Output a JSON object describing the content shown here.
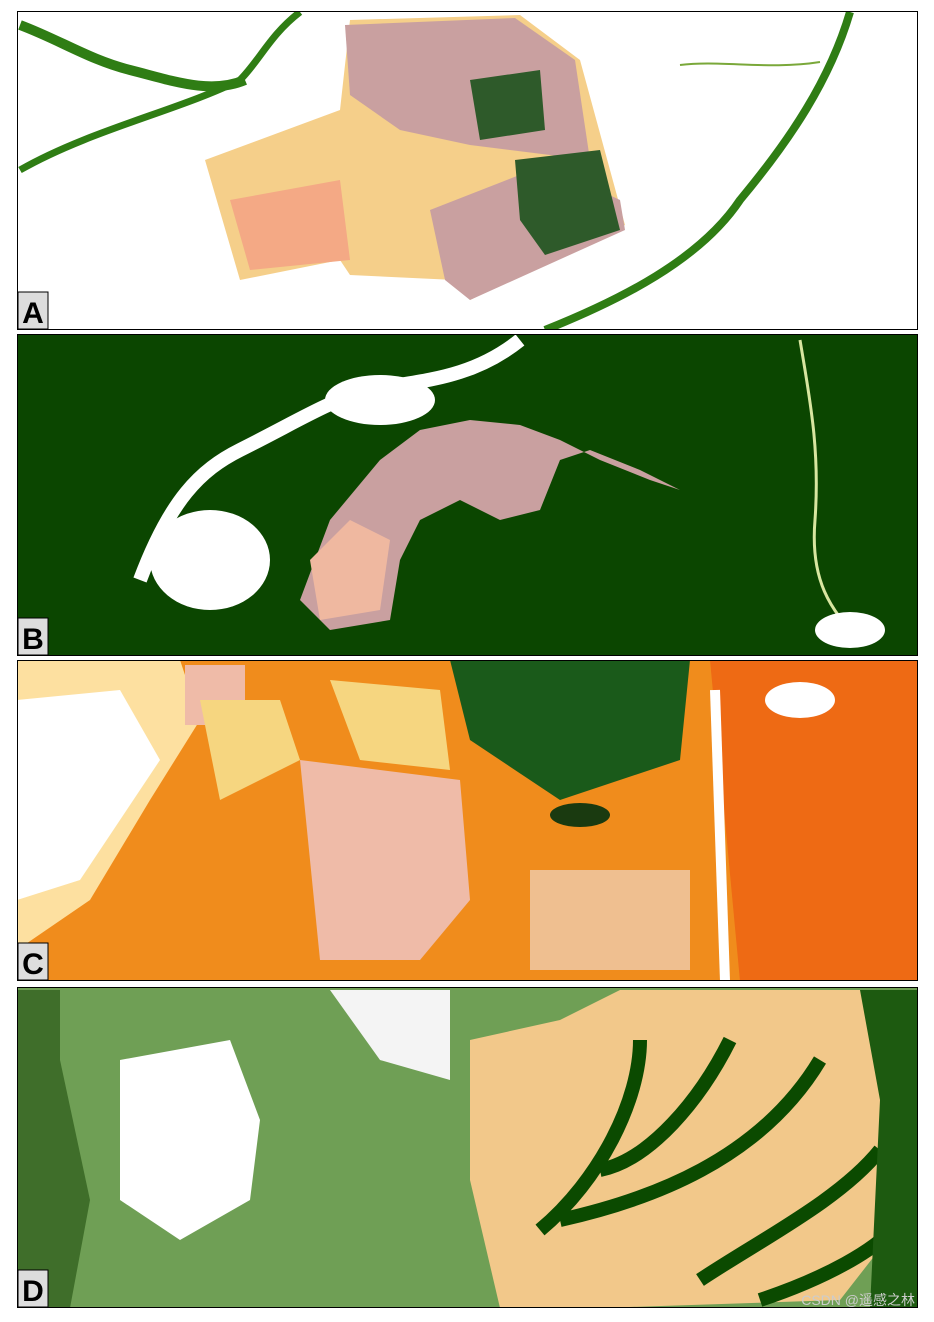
{
  "panels": [
    {
      "label": "A"
    },
    {
      "label": "B"
    },
    {
      "label": "C"
    },
    {
      "label": "D"
    }
  ],
  "watermark": "CSDN @遥感之林"
}
